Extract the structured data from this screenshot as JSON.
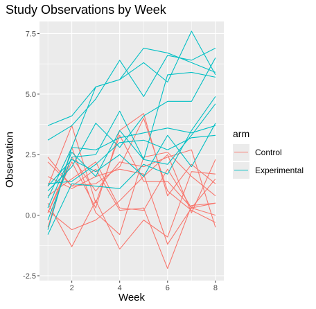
{
  "chart_data": {
    "type": "line",
    "title": "Study Observations by Week",
    "xlabel": "Week",
    "ylabel": "Observation",
    "xlim": [
      0.65,
      8.35
    ],
    "ylim": [
      -2.7,
      8.0
    ],
    "x_ticks": [
      2,
      4,
      6,
      8
    ],
    "y_ticks": [
      -2.5,
      0.0,
      2.5,
      5.0,
      7.5
    ],
    "y_tick_labels": [
      "-2.5",
      "0.0",
      "2.5",
      "5.0",
      "7.5"
    ],
    "grid": true,
    "legend": {
      "title": "arm",
      "placement": "right",
      "entries": [
        "Control",
        "Experimental"
      ]
    },
    "colors": {
      "Control": "#F8766D",
      "Experimental": "#00BFC4",
      "panel": "#EBEBEB",
      "grid": "#FFFFFF"
    },
    "x": [
      1,
      2,
      3,
      4,
      5,
      6,
      7,
      8
    ],
    "series": [
      {
        "arm": "Control",
        "values": [
          0.2,
          -0.6,
          -0.2,
          0.6,
          1.6,
          2.5,
          0.1,
          2.3
        ]
      },
      {
        "arm": "Control",
        "values": [
          2.2,
          1.2,
          1.9,
          0.2,
          0.3,
          -2.2,
          0.4,
          0.5
        ]
      },
      {
        "arm": "Control",
        "values": [
          0.1,
          2.4,
          1.0,
          2.2,
          2.0,
          2.4,
          2.7,
          -0.5
        ]
      },
      {
        "arm": "Control",
        "values": [
          0.5,
          -1.3,
          0.6,
          -1.4,
          -0.2,
          -0.9,
          1.8,
          1.7
        ]
      },
      {
        "arm": "Control",
        "values": [
          0.1,
          2.2,
          0.3,
          3.5,
          4.2,
          0.8,
          2.1,
          1.3
        ]
      },
      {
        "arm": "Control",
        "values": [
          0.8,
          1.5,
          2.2,
          0.3,
          0.2,
          1.9,
          0.3,
          1.5
        ]
      },
      {
        "arm": "Control",
        "values": [
          2.4,
          1.2,
          1.3,
          2.0,
          4.0,
          1.0,
          0.2,
          -0.3
        ]
      },
      {
        "arm": "Control",
        "values": [
          1.2,
          3.7,
          0.5,
          3.3,
          1.4,
          1.4,
          0.3,
          0.0
        ]
      },
      {
        "arm": "Control",
        "values": [
          1.6,
          1.1,
          1.6,
          1.9,
          1.7,
          -1.2,
          0.3,
          0.5
        ]
      },
      {
        "arm": "Control",
        "values": [
          -0.5,
          2.8,
          0.1,
          -0.8,
          2.4,
          2.6,
          1.6,
          0.8
        ]
      },
      {
        "arm": "Experimental",
        "values": [
          3.7,
          4.1,
          5.3,
          5.6,
          6.9,
          6.7,
          6.3,
          5.9
        ]
      },
      {
        "arm": "Experimental",
        "values": [
          3.1,
          3.7,
          4.8,
          6.4,
          4.9,
          6.6,
          6.4,
          6.9
        ]
      },
      {
        "arm": "Experimental",
        "values": [
          0.7,
          2.8,
          5.3,
          5.6,
          6.3,
          5.5,
          7.6,
          5.8
        ]
      },
      {
        "arm": "Experimental",
        "values": [
          -0.2,
          2.4,
          2.5,
          4.3,
          2.3,
          5.8,
          5.9,
          5.7
        ]
      },
      {
        "arm": "Experimental",
        "values": [
          1.0,
          2.0,
          3.8,
          2.8,
          4.1,
          4.7,
          4.7,
          6.5
        ]
      },
      {
        "arm": "Experimental",
        "values": [
          -0.6,
          2.8,
          2.7,
          3.2,
          3.4,
          3.6,
          3.4,
          3.7
        ]
      },
      {
        "arm": "Experimental",
        "values": [
          1.3,
          1.4,
          2.1,
          3.0,
          3.1,
          2.7,
          3.2,
          3.3
        ]
      },
      {
        "arm": "Experimental",
        "values": [
          1.2,
          2.3,
          1.8,
          2.5,
          1.6,
          3.3,
          2.0,
          3.8
        ]
      },
      {
        "arm": "Experimental",
        "values": [
          -0.8,
          1.3,
          1.2,
          1.1,
          2.1,
          1.7,
          3.5,
          4.9
        ]
      },
      {
        "arm": "Experimental",
        "values": [
          0.3,
          2.6,
          1.6,
          3.5,
          2.3,
          2.1,
          3.3,
          4.6
        ]
      }
    ]
  }
}
